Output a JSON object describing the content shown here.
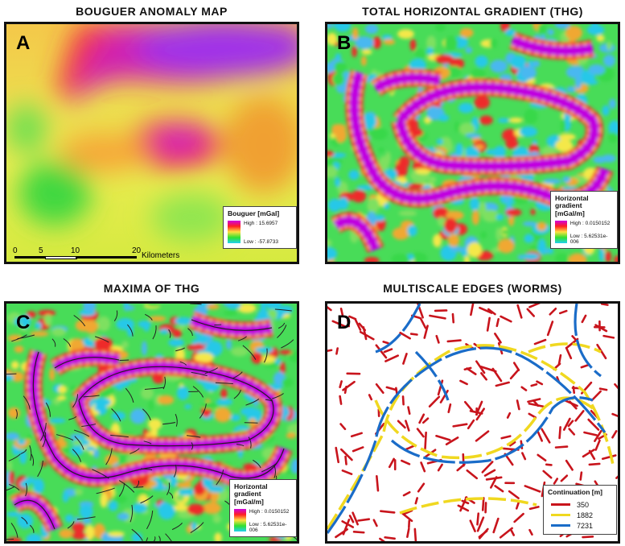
{
  "panels": [
    {
      "letter": "A",
      "title": "BOUGUER ANOMALY MAP",
      "legend": {
        "title": "Bouguer [mGal]",
        "items": [
          "High : 15.6957",
          "Low : -57.8733"
        ]
      },
      "scale_bar": {
        "ticks": [
          "0",
          "5",
          "10",
          "20"
        ],
        "unit": "Kilometers"
      }
    },
    {
      "letter": "B",
      "title": "TOTAL HORIZONTAL GRADIENT (THG)",
      "legend": {
        "title": "Horizontal gradient [mGal/m]",
        "items": [
          "High : 0.0150152",
          "Low : 5.62531e-006"
        ]
      }
    },
    {
      "letter": "C",
      "title": "MAXIMA OF THG",
      "legend": {
        "title": "Horizontal gradient [mGal/m]",
        "items": [
          "High : 0.0150152",
          "Low : 5.62531e-006"
        ]
      }
    },
    {
      "letter": "D",
      "title": "MULTISCALE EDGES (WORMS)",
      "legend": {
        "title": "Continuation [m]",
        "items": [
          "350",
          "1882",
          "7231"
        ]
      }
    }
  ]
}
